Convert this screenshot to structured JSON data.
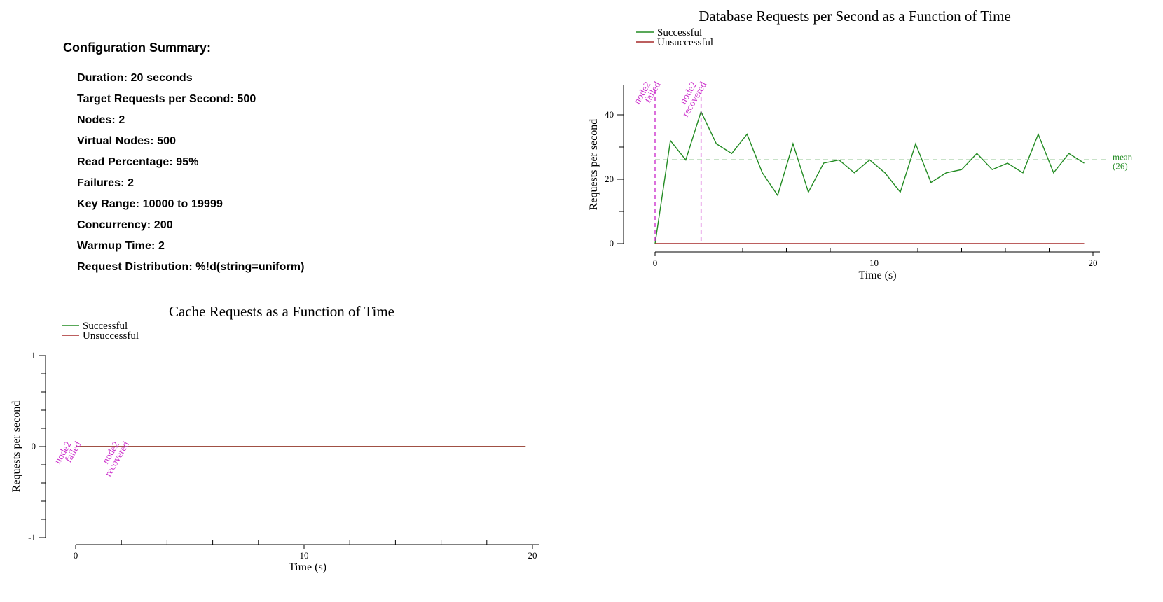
{
  "summary": {
    "title": "Configuration Summary:",
    "items": [
      "Duration: 20 seconds",
      "Target Requests per Second: 500",
      "Nodes: 2",
      "Virtual Nodes: 500",
      "Read Percentage: 95%",
      "Failures: 2",
      "Key Range: 10000 to 19999",
      "Concurrency: 200",
      "Warmup Time: 2",
      "Request Distribution: %!d(string=uniform)"
    ]
  },
  "colors": {
    "successful": "#228b22",
    "unsuccessful": "#a52a2a",
    "annotation": "#cc33cc",
    "axis": "#000000"
  },
  "chart_data": [
    {
      "id": "db",
      "type": "line",
      "title": "Database Requests per Second as a Function of Time",
      "xlabel": "Time (s)",
      "ylabel": "Requests per second",
      "xlim": [
        0,
        20
      ],
      "ylim": [
        0,
        40
      ],
      "xticks": [
        0,
        10,
        20
      ],
      "yticks": [
        0,
        20,
        40
      ],
      "legend": [
        "Successful",
        "Unsuccessful"
      ],
      "legend_position": "top-left",
      "grid": false,
      "series": [
        {
          "name": "Successful",
          "color": "#228b22",
          "x": [
            0,
            0.7,
            1.4,
            2.1,
            2.8,
            3.5,
            4.2,
            4.9,
            5.6,
            6.3,
            7.0,
            7.7,
            8.4,
            9.1,
            9.8,
            10.5,
            11.2,
            11.9,
            12.6,
            13.3,
            14.0,
            14.7,
            15.4,
            16.1,
            16.8,
            17.5,
            18.2,
            18.9,
            19.6
          ],
          "y": [
            0,
            32,
            26,
            41,
            31,
            28,
            34,
            22,
            15,
            31,
            16,
            25,
            26,
            22,
            26,
            22,
            16,
            31,
            19,
            22,
            23,
            28,
            23,
            25,
            22,
            34,
            22,
            28,
            25
          ]
        },
        {
          "name": "Unsuccessful",
          "color": "#a52a2a",
          "x": [
            0,
            19.6
          ],
          "y": [
            0,
            0
          ]
        }
      ],
      "mean": {
        "value": 26,
        "label_1": "mean",
        "label_2": "(26)"
      },
      "annotations": [
        {
          "x": 0,
          "line1": "node2",
          "line2": "failed"
        },
        {
          "x": 2.1,
          "line1": "node2",
          "line2": "recovered"
        }
      ]
    },
    {
      "id": "cache",
      "type": "line",
      "title": "Cache Requests as a Function of Time",
      "xlabel": "Time (s)",
      "ylabel": "Requests per second",
      "xlim": [
        0,
        20
      ],
      "ylim": [
        -1,
        1
      ],
      "xticks": [
        0,
        10,
        20
      ],
      "yticks": [
        -1,
        0,
        1
      ],
      "legend": [
        "Successful",
        "Unsuccessful"
      ],
      "legend_position": "top-left",
      "grid": false,
      "series": [
        {
          "name": "Successful",
          "color": "#228b22",
          "x": [
            0,
            19.7
          ],
          "y": [
            0,
            0
          ]
        },
        {
          "name": "Unsuccessful",
          "color": "#a52a2a",
          "x": [
            0,
            19.7
          ],
          "y": [
            0,
            0
          ]
        }
      ],
      "annotations": [
        {
          "x": 0,
          "line1": "node2",
          "line2": "failed"
        },
        {
          "x": 2.1,
          "line1": "node2",
          "line2": "recovered"
        }
      ]
    }
  ]
}
